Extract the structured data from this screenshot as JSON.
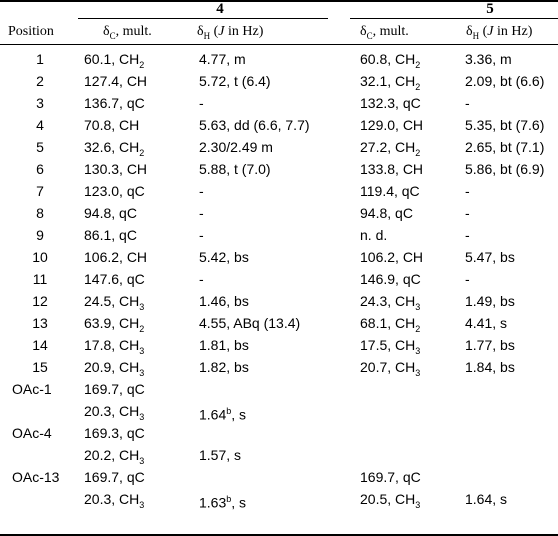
{
  "header": {
    "compound_4": "4",
    "compound_5": "5",
    "col_position": "Position",
    "col_4c": "δC, mult.",
    "col_4h": "δH (J in Hz)",
    "col_5c": "δC, mult.",
    "col_5h": "δH (J in Hz)"
  },
  "rows": [
    {
      "pos": "1",
      "c4": "60.1, CH2",
      "h4": "4.77, m",
      "c5": "60.8, CH2",
      "h5": "3.36, m"
    },
    {
      "pos": "2",
      "c4": "127.4, CH",
      "h4": "5.72, t (6.4)",
      "c5": "32.1, CH2",
      "h5": "2.09, bt (6.6)"
    },
    {
      "pos": "3",
      "c4": "136.7, qC",
      "h4": "-",
      "c5": "132.3, qC",
      "h5": "-"
    },
    {
      "pos": "4",
      "c4": "70.8, CH",
      "h4": "5.63, dd (6.6, 7.7)",
      "c5": "129.0, CH",
      "h5": "5.35, bt (7.6)"
    },
    {
      "pos": "5",
      "c4": "32.6, CH2",
      "h4": "2.30/2.49 m",
      "c5": "27.2, CH2",
      "h5": "2.65, bt (7.1)"
    },
    {
      "pos": "6",
      "c4": "130.3, CH",
      "h4": "5.88, t (7.0)",
      "c5": "133.8, CH",
      "h5": "5.86, bt (6.9)"
    },
    {
      "pos": "7",
      "c4": "123.0, qC",
      "h4": "-",
      "c5": "119.4, qC",
      "h5": "-"
    },
    {
      "pos": "8",
      "c4": "94.8, qC",
      "h4": "-",
      "c5": "94.8, qC",
      "h5": "-"
    },
    {
      "pos": "9",
      "c4": "86.1, qC",
      "h4": "-",
      "c5": "n. d.",
      "h5": "-"
    },
    {
      "pos": "10",
      "c4": "106.2, CH",
      "h4": "5.42, bs",
      "c5": "106.2, CH",
      "h5": "5.47, bs"
    },
    {
      "pos": "11",
      "c4": "147.6, qC",
      "h4": "-",
      "c5": "146.9, qC",
      "h5": "-"
    },
    {
      "pos": "12",
      "c4": "24.5, CH3",
      "h4": "1.46, bs",
      "c5": "24.3, CH3",
      "h5": "1.49, bs"
    },
    {
      "pos": "13",
      "c4": "63.9, CH2",
      "h4": "4.55, ABq (13.4)",
      "c5": "68.1, CH2",
      "h5": "4.41, s"
    },
    {
      "pos": "14",
      "c4": "17.8, CH3",
      "h4": "1.81, bs",
      "c5": "17.5, CH3",
      "h5": "1.77, bs"
    },
    {
      "pos": "15",
      "c4": "20.9, CH3",
      "h4": "1.82, bs",
      "c5": "20.7, CH3",
      "h5": "1.84, bs"
    },
    {
      "pos": "OAc-1",
      "c4": "169.7, qC",
      "h4": "",
      "c5": "",
      "h5": ""
    },
    {
      "pos": "",
      "c4": "20.3, CH3",
      "h4": "1.64b, s",
      "c5": "",
      "h5": ""
    },
    {
      "pos": "OAc-4",
      "c4": "169.3, qC",
      "h4": "",
      "c5": "",
      "h5": ""
    },
    {
      "pos": "",
      "c4": "20.2, CH3",
      "h4": "1.57, s",
      "c5": "",
      "h5": ""
    },
    {
      "pos": "OAc-13",
      "c4": "169.7, qC",
      "h4": "",
      "c5": "169.7, qC",
      "h5": ""
    },
    {
      "pos": "",
      "c4": "20.3, CH3",
      "h4": "1.63b, s",
      "c5": "20.5, CH3",
      "h5": "1.64, s"
    }
  ]
}
